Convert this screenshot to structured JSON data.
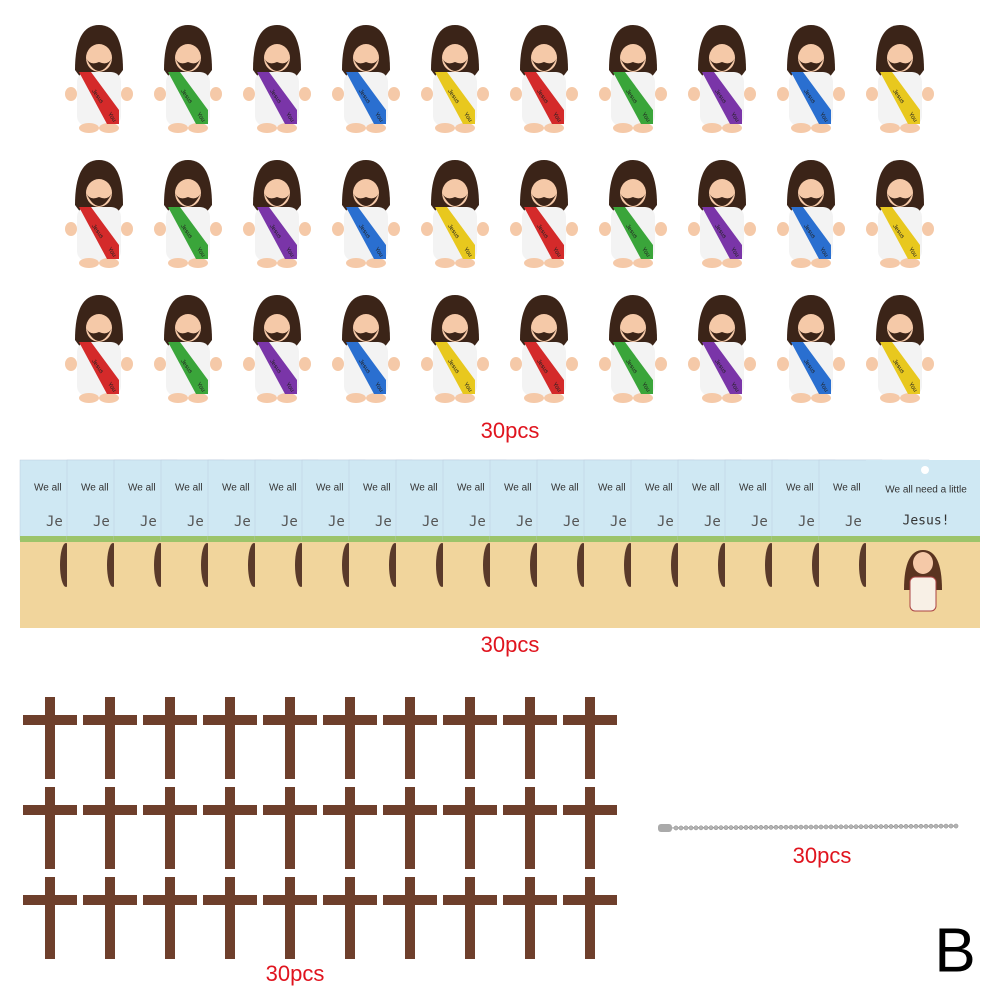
{
  "figurines": {
    "sash_text": "Jesus",
    "sash_text2": "You"
  },
  "cards": {
    "back_text": "We all",
    "front_line1": "We all need a little",
    "front_line2": "Jesus!",
    "partial": "Je"
  },
  "labels": {
    "figurines": "30pcs",
    "cards": "30pcs",
    "chains": "30pcs",
    "crosses": "30pcs"
  },
  "variant": "B"
}
